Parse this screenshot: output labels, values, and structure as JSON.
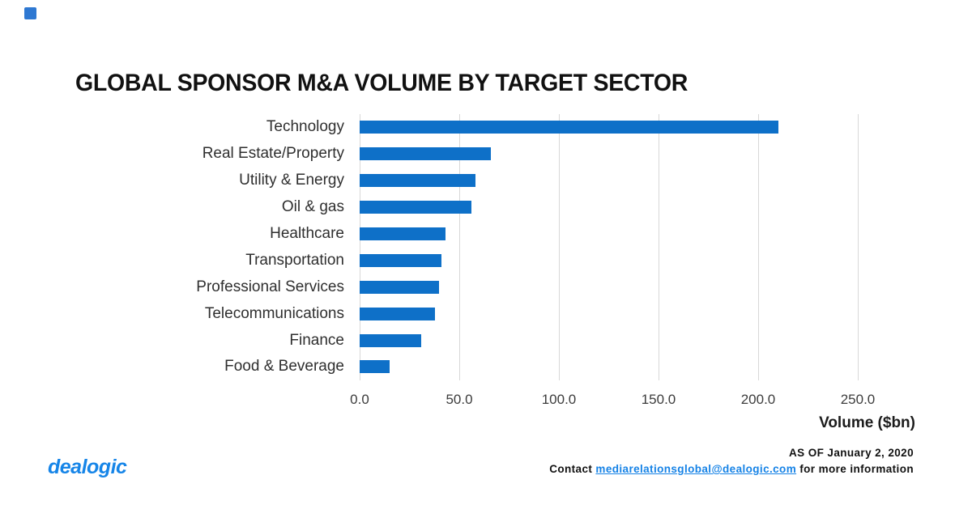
{
  "brand": {
    "square_color": "#2e78d2",
    "logo_text": "dealogic",
    "logo_color": "#1685e8"
  },
  "chart_data": {
    "type": "bar",
    "orientation": "horizontal",
    "title": "GLOBAL SPONSOR M&A VOLUME BY TARGET SECTOR",
    "categories": [
      "Technology",
      "Real Estate/Property",
      "Utility & Energy",
      "Oil & gas",
      "Healthcare",
      "Transportation",
      "Professional Services",
      "Telecommunications",
      "Finance",
      "Food & Beverage"
    ],
    "values": [
      210,
      66,
      58,
      56,
      43,
      41,
      40,
      38,
      31,
      15
    ],
    "bar_color": "#0e70c8",
    "x_ticks": [
      0,
      50,
      100,
      150,
      200,
      250
    ],
    "x_tick_labels": [
      "0.0",
      "50.0",
      "100.0",
      "150.0",
      "200.0",
      "250.0"
    ],
    "xlabel": "Volume ($bn)",
    "xlim": [
      0,
      266
    ],
    "gridlines": true,
    "gridline_color": "#d8d8d8",
    "legend": "none"
  },
  "footer": {
    "as_of": "AS OF January 2, 2020",
    "contact_prefix": "Contact ",
    "contact_email": "mediarelationsglobal@dealogic.com",
    "contact_suffix": " for more information",
    "email_color": "#1582e6"
  }
}
